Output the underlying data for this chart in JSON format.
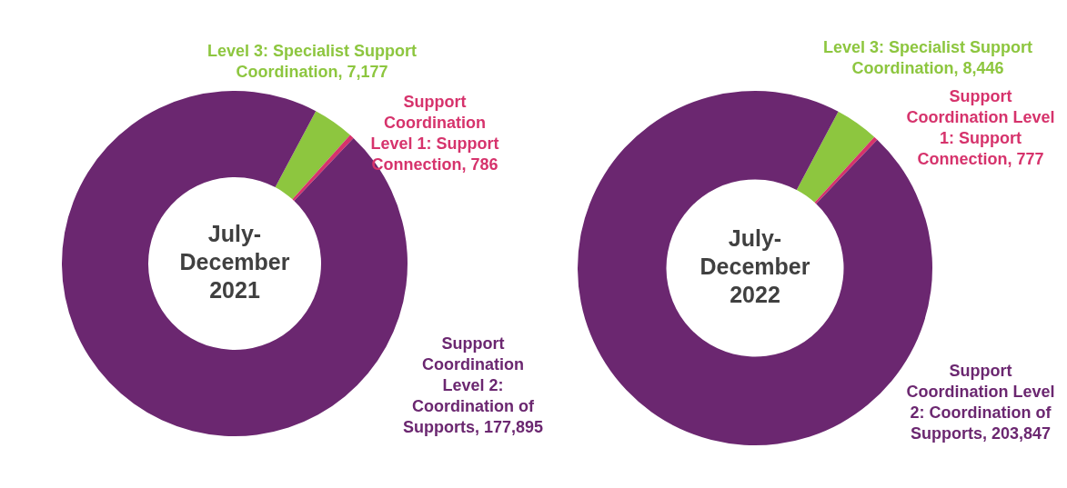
{
  "chart_data": [
    {
      "type": "donut",
      "title": "July-December 2021",
      "categories": [
        "Level 3: Specialist Support Coordination",
        "Support Coordination Level 1: Support Connection",
        "Support Coordination Level 2: Coordination of Supports"
      ],
      "values": [
        7177,
        786,
        177895
      ],
      "value_labels": [
        ", 7,177",
        ", 786",
        ", 177,895"
      ],
      "colors": [
        "#8dc63f",
        "#d6336c",
        "#6b2770"
      ]
    },
    {
      "type": "donut",
      "title": "July-December 2022",
      "categories": [
        "Level 3: Specialist Support Coordination",
        "Support Coordination Level 1: Support Connection",
        "Support Coordination Level 2: Coordination of Supports"
      ],
      "values": [
        8446,
        777,
        203847
      ],
      "value_labels": [
        ", 8,446",
        ", 777",
        ", 203,847"
      ],
      "colors": [
        "#8dc63f",
        "#d6336c",
        "#6b2770"
      ]
    }
  ]
}
